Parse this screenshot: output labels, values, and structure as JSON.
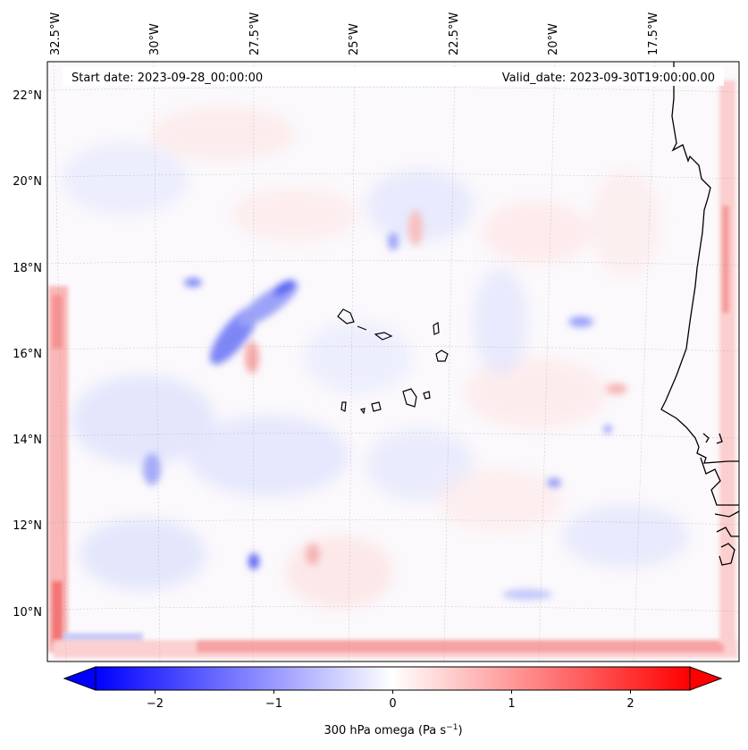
{
  "map": {
    "start_label": "Start date: 2023-09-28_00:00:00",
    "valid_label": "Valid_date: 2023-09-30T19:00:00.00",
    "lon_labels": [
      "32.5°W",
      "30°W",
      "27.5°W",
      "25°W",
      "22.5°W",
      "20°W",
      "17.5°W"
    ],
    "lat_labels": [
      "22°N",
      "20°N",
      "18°N",
      "16°N",
      "14°N",
      "12°N",
      "10°N"
    ],
    "islands": "Cape Verde",
    "colormap": {
      "negative": "#0000ff",
      "zero": "#ffffff",
      "positive": "#ff0000"
    }
  },
  "colorbar": {
    "ticks": [
      "−2",
      "−1",
      "0",
      "1",
      "2"
    ],
    "tick_values": [
      -2,
      -1,
      0,
      1,
      2
    ],
    "range": [
      -2.5,
      2.5
    ],
    "label_main": "300 hPa omega (Pa s",
    "label_sup": "−1",
    "label_end": ")"
  }
}
